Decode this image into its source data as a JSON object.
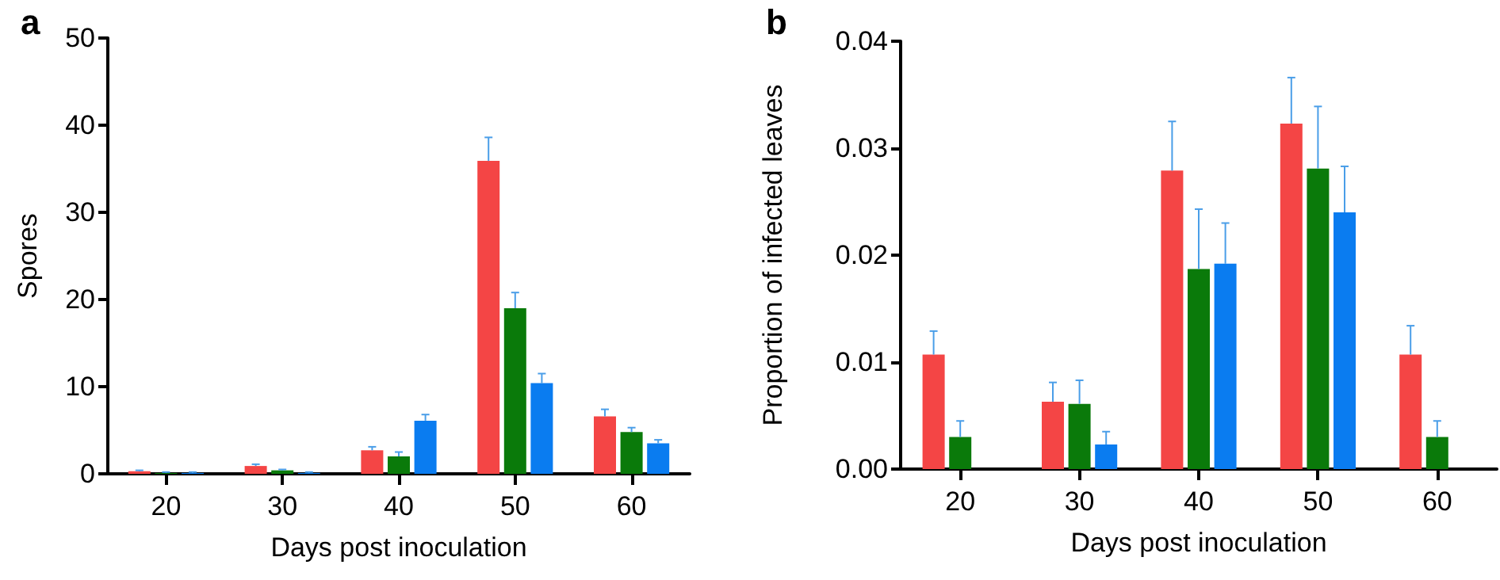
{
  "chart_data": [
    {
      "type": "bar",
      "title": "a",
      "xlabel": "Days post inoculation",
      "ylabel": "Spores",
      "categories": [
        "20",
        "30",
        "40",
        "50",
        "60"
      ],
      "ylim": [
        0,
        50
      ],
      "yticks": [
        0,
        10,
        20,
        30,
        40,
        50
      ],
      "series": [
        {
          "color": "#f44545",
          "values": [
            0.3,
            0.9,
            2.7,
            35.9,
            6.6
          ],
          "errors": [
            [
              0.3,
              0.4
            ],
            [
              0.9,
              1.1
            ],
            [
              2.7,
              3.1
            ],
            [
              35.9,
              38.6
            ],
            [
              6.6,
              7.4
            ]
          ]
        },
        {
          "color": "#0a7a0a",
          "values": [
            0.1,
            0.4,
            2.0,
            19.0,
            4.8
          ],
          "errors": [
            [
              0.1,
              0.2
            ],
            [
              0.4,
              0.5
            ],
            [
              2.0,
              2.5
            ],
            [
              19.0,
              20.8
            ],
            [
              4.8,
              5.3
            ]
          ]
        },
        {
          "color": "#0a7cf0",
          "values": [
            0.1,
            0.1,
            6.1,
            10.4,
            3.5
          ],
          "errors": [
            [
              0.1,
              0.2
            ],
            [
              0.1,
              0.2
            ],
            [
              6.1,
              6.8
            ],
            [
              10.4,
              11.5
            ],
            [
              3.5,
              3.9
            ]
          ]
        }
      ]
    },
    {
      "type": "bar",
      "title": "b",
      "xlabel": "Days post inoculation",
      "ylabel": "Proportion of infected leaves",
      "categories": [
        "20",
        "30",
        "40",
        "50",
        "60"
      ],
      "ylim": [
        0,
        0.04
      ],
      "yticks": [
        {
          "value": 0,
          "label": "0.00"
        },
        {
          "value": 0.01,
          "label": "0.01"
        },
        {
          "value": 0.02,
          "label": "0.02"
        },
        {
          "value": 0.03,
          "label": "0.03"
        },
        {
          "value": 0.04,
          "label": "0.04"
        }
      ],
      "series": [
        {
          "color": "#f44545",
          "values": [
            0.0107,
            0.0063,
            0.0279,
            0.0323,
            0.0107
          ],
          "errors": [
            [
              0.0107,
              0.0129
            ],
            [
              0.0063,
              0.0081
            ],
            [
              0.0279,
              0.0325
            ],
            [
              0.0323,
              0.0366
            ],
            [
              0.0107,
              0.0134
            ]
          ]
        },
        {
          "color": "#0a7a0a",
          "values": [
            0.003,
            0.0061,
            0.0187,
            0.0281,
            0.003
          ],
          "errors": [
            [
              0.003,
              0.0045
            ],
            [
              0.0061,
              0.0083
            ],
            [
              0.0187,
              0.0243
            ],
            [
              0.0281,
              0.0339
            ],
            [
              0.003,
              0.0045
            ]
          ]
        },
        {
          "color": "#0a7cf0",
          "values": [
            null,
            0.0023,
            0.0192,
            0.024,
            null
          ],
          "errors": [
            null,
            [
              0.0023,
              0.0035
            ],
            [
              0.0192,
              0.023
            ],
            [
              0.024,
              0.0283
            ],
            null
          ]
        }
      ]
    }
  ]
}
